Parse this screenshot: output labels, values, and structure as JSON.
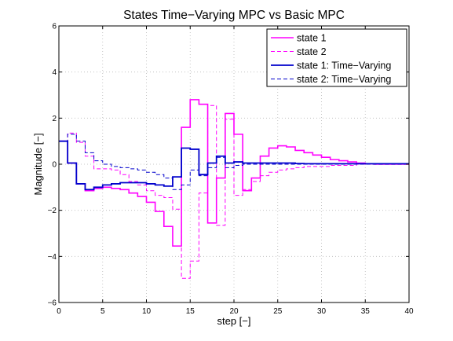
{
  "chart_data": {
    "type": "line",
    "step_plot": true,
    "title": "States Time−Varying MPC vs Basic MPC",
    "xlabel": "step [−]",
    "ylabel": "Magnitude [−]",
    "xlim": [
      0,
      40
    ],
    "ylim": [
      -6,
      6
    ],
    "xticks": [
      0,
      5,
      10,
      15,
      20,
      25,
      30,
      35,
      40
    ],
    "yticks": [
      -6,
      -4,
      -2,
      0,
      2,
      4,
      6
    ],
    "xtick_labels": [
      "0",
      "5",
      "10",
      "15",
      "20",
      "25",
      "30",
      "35",
      "40"
    ],
    "ytick_labels": [
      "−6",
      "−4",
      "−2",
      "0",
      "2",
      "4",
      "6"
    ],
    "grid": true,
    "legend_position": "top-right",
    "x": [
      0,
      1,
      2,
      3,
      4,
      5,
      6,
      7,
      8,
      9,
      10,
      11,
      12,
      13,
      14,
      15,
      16,
      17,
      18,
      19,
      20,
      21,
      22,
      23,
      24,
      25,
      26,
      27,
      28,
      29,
      30,
      31,
      32,
      33,
      34,
      35,
      36,
      37,
      38,
      39,
      40
    ],
    "series": [
      {
        "name": "state 1",
        "color": "#ff00ff",
        "dash": "solid",
        "width": 1.6,
        "values": [
          1.0,
          0.05,
          -0.85,
          -1.15,
          -1.05,
          -1.0,
          -1.05,
          -1.1,
          -1.25,
          -1.4,
          -1.65,
          -2.05,
          -2.7,
          -3.55,
          1.6,
          2.8,
          2.6,
          -2.55,
          -0.6,
          2.2,
          1.3,
          -1.15,
          -0.6,
          0.35,
          0.7,
          0.8,
          0.75,
          0.6,
          0.5,
          0.4,
          0.3,
          0.2,
          0.15,
          0.1,
          0.05,
          0.02,
          0.0,
          0.0,
          0.0,
          0.0,
          0.0
        ]
      },
      {
        "name": "state 2",
        "color": "#ff00ff",
        "dash": "dashed",
        "width": 1.0,
        "values": [
          1.0,
          1.35,
          0.95,
          0.35,
          -0.2,
          -0.2,
          -0.25,
          -0.45,
          -0.75,
          -0.9,
          -1.15,
          -1.35,
          -1.45,
          -1.95,
          -4.95,
          -4.2,
          -1.25,
          2.55,
          -2.65,
          1.95,
          -1.35,
          -1.1,
          -0.75,
          -0.5,
          -0.35,
          -0.25,
          -0.2,
          -0.15,
          -0.1,
          -0.1,
          -0.1,
          -0.05,
          -0.05,
          -0.05,
          0.0,
          0.0,
          0.0,
          0.0,
          0.0,
          0.0,
          0.0
        ]
      },
      {
        "name": "state 1: Time−Varying",
        "color": "#0000cc",
        "dash": "solid",
        "width": 1.8,
        "values": [
          1.0,
          0.05,
          -0.85,
          -1.1,
          -1.0,
          -0.9,
          -0.85,
          -0.8,
          -0.8,
          -0.8,
          -0.85,
          -0.9,
          -0.95,
          -0.55,
          0.7,
          0.65,
          -0.45,
          0.05,
          0.35,
          0.05,
          0.1,
          0.05,
          0.05,
          0.05,
          0.05,
          0.05,
          0.05,
          0.03,
          0.02,
          0.02,
          0.02,
          0.02,
          0.02,
          0.02,
          0.02,
          0.02,
          0.02,
          0.02,
          0.02,
          0.02,
          0.02
        ]
      },
      {
        "name": "state 2: Time−Varying",
        "color": "#0000cc",
        "dash": "dashed",
        "width": 1.0,
        "values": [
          1.0,
          1.3,
          1.0,
          0.5,
          0.15,
          0.0,
          -0.1,
          -0.15,
          -0.2,
          -0.25,
          -0.35,
          -0.45,
          -0.6,
          -1.1,
          -0.9,
          -0.25,
          -0.5,
          -0.15,
          0.3,
          -0.15,
          -0.05,
          0.0,
          0.0,
          0.0,
          0.0,
          0.0,
          0.0,
          0.0,
          0.0,
          0.0,
          0.0,
          0.0,
          0.0,
          0.0,
          0.0,
          0.0,
          0.0,
          0.0,
          0.0,
          0.0,
          0.0
        ]
      }
    ]
  }
}
